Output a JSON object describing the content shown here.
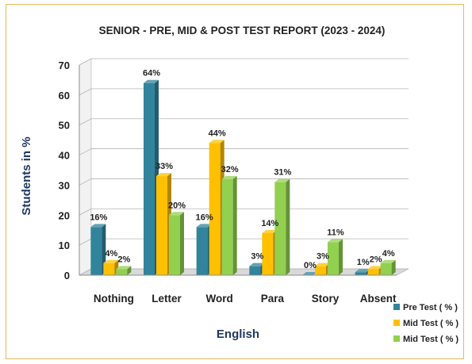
{
  "chart_data": {
    "type": "bar",
    "title": "SENIOR -   PRE, MID &  POST TEST  REPORT (2023 - 2024)",
    "xlabel": "English",
    "ylabel": "Students   in   %",
    "categories": [
      "Nothing",
      "Letter",
      "Word",
      "Para",
      "Story",
      "Absent"
    ],
    "ylim": [
      0,
      70
    ],
    "yticks": [
      "0",
      "10",
      "20",
      "30",
      "40",
      "50",
      "60",
      "70"
    ],
    "legend_position": "bottom-right",
    "grid": true,
    "style": "3d",
    "series": [
      {
        "name": "Pre Test  ( % )",
        "color": "#31849b",
        "values": [
          16,
          64,
          16,
          3,
          0,
          1
        ],
        "labels": [
          "16%",
          "64%",
          "16%",
          "3%",
          "0%",
          "1%"
        ]
      },
      {
        "name": "Mid Test  ( % )",
        "color": "#ffc000",
        "values": [
          4,
          33,
          44,
          14,
          3,
          2
        ],
        "labels": [
          "4%",
          "33%",
          "44%",
          "14%",
          "3%",
          "2%"
        ]
      },
      {
        "name": "Mid Test  ( % )",
        "color": "#92d050",
        "values": [
          2,
          20,
          32,
          31,
          11,
          4
        ],
        "labels": [
          "2%",
          "20%",
          "32%",
          "31%",
          "11%",
          "4%"
        ]
      }
    ]
  }
}
